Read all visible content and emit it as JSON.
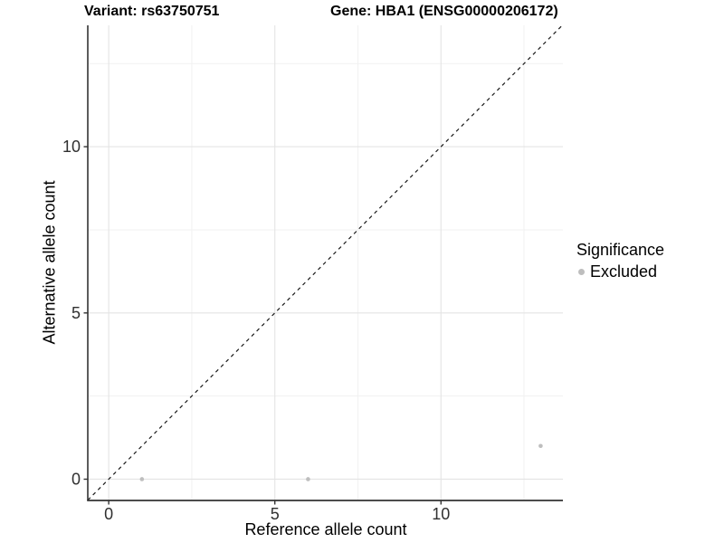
{
  "chart_data": {
    "type": "scatter",
    "title_left": "Variant: rs63750751",
    "title_right": "Gene: HBA1 (ENSG00000206172)",
    "xlabel": "Reference allele count",
    "ylabel": "Alternative allele count",
    "xlim": [
      -0.63,
      13.67
    ],
    "ylim": [
      -0.64,
      13.65
    ],
    "x_major_ticks": [
      0,
      5,
      10
    ],
    "x_minor_ticks": [
      2.5,
      7.5,
      12.5
    ],
    "y_major_ticks": [
      0,
      5,
      10
    ],
    "y_minor_ticks": [
      2.5,
      7.5,
      12.5
    ],
    "grid": "major+minor",
    "series": [
      {
        "name": "Excluded",
        "color": "#bebebe",
        "points": [
          {
            "x": 1,
            "y": 0
          },
          {
            "x": 6,
            "y": 0
          },
          {
            "x": 13,
            "y": 1
          }
        ]
      }
    ],
    "reference_line": {
      "kind": "identity y=x",
      "style": "dashed",
      "color": "#1a1a1a"
    },
    "legend": {
      "title": "Significance",
      "position": "right",
      "items": [
        {
          "label": "Excluded",
          "color": "#bebebe"
        }
      ]
    },
    "colors": {
      "background": "#ffffff",
      "grid_major": "#e4e4e4",
      "grid_minor": "#f1f1f1",
      "axis_line": "#333333",
      "tick_mark": "#333333",
      "tick_label": "#303030",
      "point": "#bebebe"
    }
  }
}
